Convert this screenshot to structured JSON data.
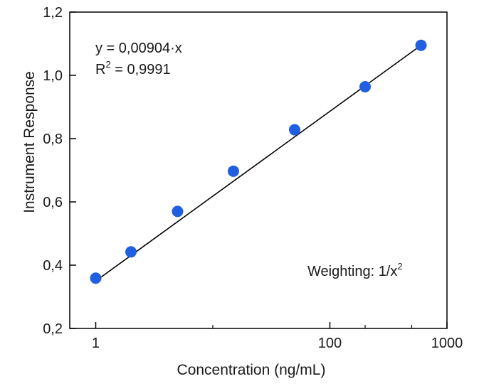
{
  "chart_data": {
    "type": "scatter",
    "x_scale": "log",
    "xlim": [
      0.6,
      1000
    ],
    "ylim": [
      0.2,
      1.2
    ],
    "xticks": [
      1,
      100,
      1000
    ],
    "xtick_labels": [
      "1",
      "100",
      "1000"
    ],
    "yticks": [
      0.2,
      0.4,
      0.6,
      0.8,
      1.0,
      1.2
    ],
    "ytick_labels": [
      "0,2",
      "0,4",
      "0,6",
      "0,8",
      "1,0",
      "1,2"
    ],
    "xlabel": "Concentration (ng/mL)",
    "ylabel": "Instrument Response",
    "grid": false,
    "points": [
      {
        "x": 1,
        "y": 0.359
      },
      {
        "x": 2,
        "y": 0.442
      },
      {
        "x": 5,
        "y": 0.57
      },
      {
        "x": 15,
        "y": 0.697
      },
      {
        "x": 50,
        "y": 0.828
      },
      {
        "x": 200,
        "y": 0.964
      },
      {
        "x": 600,
        "y": 1.095
      }
    ],
    "fit_line": {
      "x": [
        1,
        600
      ],
      "y": [
        0.35,
        1.095
      ]
    },
    "annotations": {
      "equation": "y = 0,00904·x",
      "r2_prefix": "R",
      "r2_exp": "2",
      "r2_value": " = 0,9991",
      "weighting_text": "Weighting: 1/x",
      "weighting_exp": "2"
    },
    "colors": {
      "points": "#1f5fe0",
      "line": "#000000",
      "frame": "#000000"
    }
  }
}
